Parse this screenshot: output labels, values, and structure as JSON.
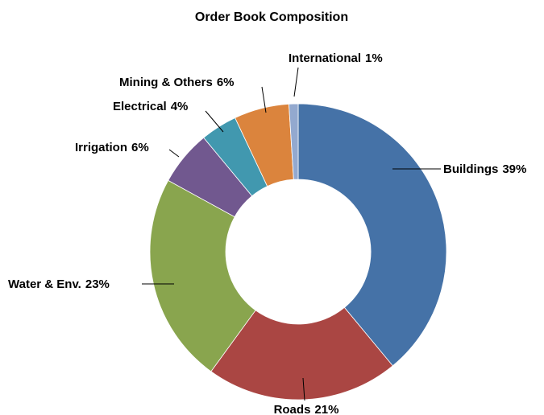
{
  "chart_data": {
    "type": "donut",
    "title": "Order Book Composition",
    "categories": [
      "Buildings",
      "Roads",
      "Water & Env.",
      "Irrigation",
      "Electrical",
      "Mining & Others",
      "International"
    ],
    "values": [
      39,
      21,
      23,
      6,
      4,
      6,
      1
    ],
    "value_labels": [
      "39%",
      "21%",
      "23%",
      "6%",
      "4%",
      "6%",
      "1%"
    ],
    "colors": [
      "#4572a7",
      "#aa4643",
      "#89a54e",
      "#71588f",
      "#4198af",
      "#db843d",
      "#93a9cf"
    ]
  }
}
